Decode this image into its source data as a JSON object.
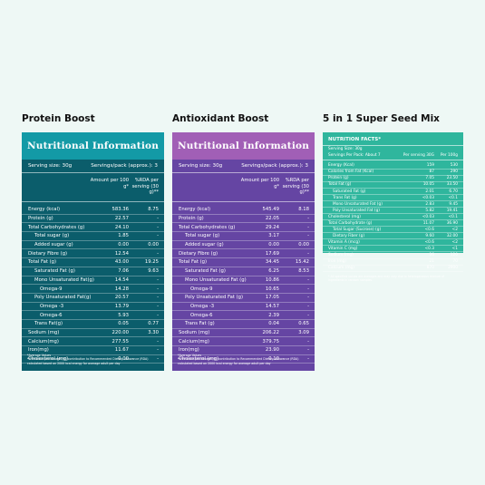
{
  "products": [
    {
      "title": "Protein Boost"
    },
    {
      "title": "Antioxidant Boost"
    },
    {
      "title": "5 in 1 Super Seed Mix"
    }
  ],
  "protein": {
    "header": "Nutritional Information",
    "serving_size": "Serving size: 30g",
    "servings_pack": "Servings/pack (approx.): 3",
    "col_amount": "Amount per 100 g*",
    "col_rda": "%RDA per serving (30 g)**",
    "rows": [
      {
        "label": "Energy (kcal)",
        "v1": "583.36",
        "v2": "8.75",
        "indent": 0
      },
      {
        "label": "Protein (g)",
        "v1": "22.57",
        "v2": "-",
        "indent": 0
      },
      {
        "label": "Total Carbohydrates (g)",
        "v1": "24.10",
        "v2": "-",
        "indent": 0
      },
      {
        "label": "Total sugar (g)",
        "v1": "1.85",
        "v2": "-",
        "indent": 1
      },
      {
        "label": "Added sugar (g)",
        "v1": "0.00",
        "v2": "0.00",
        "indent": 1
      },
      {
        "label": "Dietary Fibre (g)",
        "v1": "12.54",
        "v2": "-",
        "indent": 0
      },
      {
        "label": "Total Fat (g)",
        "v1": "43.00",
        "v2": "19.25",
        "indent": 0
      },
      {
        "label": "Saturated Fat (g)",
        "v1": "7.06",
        "v2": "9.63",
        "indent": 1
      },
      {
        "label": "Mono Unsaturated Fat(g)",
        "v1": "14.54",
        "v2": "-",
        "indent": 1
      },
      {
        "label": "Omega-9",
        "v1": "14.28",
        "v2": "-",
        "indent": 2
      },
      {
        "label": "Poly Unsaturated Fat(g)",
        "v1": "20.57",
        "v2": "-",
        "indent": 1
      },
      {
        "label": "Omega -3",
        "v1": "13.79",
        "v2": "-",
        "indent": 2
      },
      {
        "label": "Omega-6",
        "v1": "5.93",
        "v2": "-",
        "indent": 2
      },
      {
        "label": "Trans Fat(g)",
        "v1": "0.05",
        "v2": "0.77",
        "indent": 1
      },
      {
        "label": "Sodium (mg)",
        "v1": "220.00",
        "v2": "3.30",
        "indent": 0
      },
      {
        "label": "Calcium(mg)",
        "v1": "277.55",
        "v2": "-",
        "indent": 0
      },
      {
        "label": "Iron(mg)",
        "v1": "11.67",
        "v2": "-",
        "indent": 0
      },
      {
        "label": "Cholesterol (mg)",
        "v1": "0.00",
        "v2": "-",
        "indent": 0
      }
    ],
    "foot1": "*Average Values",
    "foot2": "**Per serve percentage (%) contribution to Recommended Dietary Allowance (RDA) calculated based on 2000 kcal energy for average adult per day"
  },
  "antiox": {
    "header": "Nutritional Information",
    "serving_size": "Serving size: 30g",
    "servings_pack": "Servings/pack (approx.): 3",
    "col_amount": "Amount per 100 g*",
    "col_rda": "%RDA per serving (30 g)**",
    "rows": [
      {
        "label": "Energy (kcal)",
        "v1": "545.49",
        "v2": "8.18",
        "indent": 0
      },
      {
        "label": "Protein (g)",
        "v1": "22.05",
        "v2": "-",
        "indent": 0
      },
      {
        "label": "Total Carbohydrates (g)",
        "v1": "29.24",
        "v2": "-",
        "indent": 0
      },
      {
        "label": "Total sugar (g)",
        "v1": "3.17",
        "v2": "-",
        "indent": 1
      },
      {
        "label": "Added sugar (g)",
        "v1": "0.00",
        "v2": "0.00",
        "indent": 1
      },
      {
        "label": "Dietary Fibre (g)",
        "v1": "17.69",
        "v2": "-",
        "indent": 0
      },
      {
        "label": "Total Fat (g)",
        "v1": "34.45",
        "v2": "15.42",
        "indent": 0
      },
      {
        "label": "Saturated Fat (g)",
        "v1": "6.25",
        "v2": "8.53",
        "indent": 1
      },
      {
        "label": "Mono Unsaturated Fat (g)",
        "v1": "10.86",
        "v2": "-",
        "indent": 1
      },
      {
        "label": "Omega-9",
        "v1": "10.65",
        "v2": "-",
        "indent": 2
      },
      {
        "label": "Poly Unsaturated Fat (g)",
        "v1": "17.05",
        "v2": "-",
        "indent": 1
      },
      {
        "label": "Omega -3",
        "v1": "14.57",
        "v2": "-",
        "indent": 2
      },
      {
        "label": "Omega-6",
        "v1": "2.39",
        "v2": "-",
        "indent": 2
      },
      {
        "label": "Trans Fat (g)",
        "v1": "0.04",
        "v2": "0.65",
        "indent": 1
      },
      {
        "label": "Sodium (mg)",
        "v1": "206.22",
        "v2": "3.09",
        "indent": 0
      },
      {
        "label": "Calcium(mg)",
        "v1": "379.75",
        "v2": "-",
        "indent": 0
      },
      {
        "label": "Iron(mg)",
        "v1": "23.90",
        "v2": "-",
        "indent": 0
      },
      {
        "label": "Cholesterol (mg)",
        "v1": "0.10",
        "v2": "-",
        "indent": 0
      }
    ],
    "foot1": "*Average Values",
    "foot2": "**Per serve percentage (%) contribution to Recommended Dietary Allowance (RDA) calculated based on 2000 kcal energy for average adult per day"
  },
  "seed": {
    "header": "NUTRITION FACTS*",
    "serving_size": "Serving Size: 30g",
    "servings_pack": "Servings Per Pack: About 7",
    "col1": "Per serving 30G",
    "col2": "Per 100g",
    "rows": [
      {
        "label": "Energy (Kcal)",
        "v1": "159",
        "v2": "530",
        "indent": 0
      },
      {
        "label": "Calories from Fat (Kcal)",
        "v1": "87",
        "v2": "290",
        "indent": 0
      },
      {
        "label": "Protein (g)",
        "v1": "7.05",
        "v2": "23.50",
        "indent": 0
      },
      {
        "label": "Total Fat (g)",
        "v1": "10.05",
        "v2": "33.50",
        "indent": 0
      },
      {
        "label": "Saturated Fat (g)",
        "v1": "2.01",
        "v2": "6.70",
        "indent": 1
      },
      {
        "label": "Trans Fat (g)",
        "v1": "<0.03",
        "v2": "<0.1",
        "indent": 1
      },
      {
        "label": "Mono Unsaturated Fat (g)",
        "v1": "2.83",
        "v2": "9.45",
        "indent": 1
      },
      {
        "label": "Poly Unsaturated Fat (g)",
        "v1": "5.82",
        "v2": "19.41",
        "indent": 1
      },
      {
        "label": "Cholesterol (mg)",
        "v1": "<0.03",
        "v2": "<0.1",
        "indent": 0
      },
      {
        "label": "Total Carbohydrate (g)",
        "v1": "11.07",
        "v2": "36.90",
        "indent": 0
      },
      {
        "label": "Total Sugar (Sucrose) (g)",
        "v1": "<0.6",
        "v2": "<2",
        "indent": 1
      },
      {
        "label": "Dietary Fiber (g)",
        "v1": "9.60",
        "v2": "32.00",
        "indent": 1
      },
      {
        "label": "Vitamin A (mcg)",
        "v1": "<0.6",
        "v2": "<2",
        "indent": 0
      },
      {
        "label": "Vitamin C (mg)",
        "v1": "<0.3",
        "v2": "<1",
        "indent": 0
      },
      {
        "label": "Sodium (mg)",
        "v1": "36",
        "v2": "120",
        "indent": 0
      },
      {
        "label": "Iron (mg)",
        "v1": "21",
        "v2": "70",
        "indent": 0
      },
      {
        "label": "Calcium (mg)",
        "v1": "870",
        "v2": "2900",
        "indent": 0
      }
    ],
    "foot": "* All specified values are averages and may vary due to heterogeneous mixture of ingredients in random samples."
  }
}
